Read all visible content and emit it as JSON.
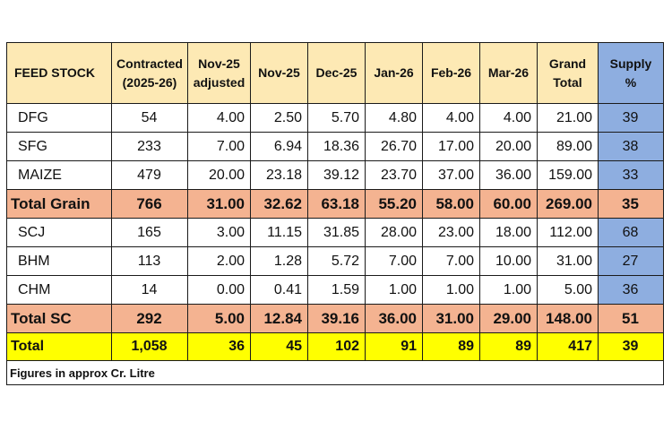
{
  "headers": {
    "feed_stock": "FEED STOCK",
    "contracted": "Contracted (2025-26)",
    "nov25_adj": "Nov-25 adjusted",
    "nov25": "Nov-25",
    "dec25": "Dec-25",
    "jan26": "Jan-26",
    "feb26": "Feb-26",
    "mar26": "Mar-26",
    "grand_total": "Grand Total",
    "supply": "Supply %"
  },
  "rows": [
    {
      "name": "DFG",
      "contracted": "54",
      "nov25_adj": "4.00",
      "nov25": "2.50",
      "dec25": "5.70",
      "jan26": "4.80",
      "feb26": "4.00",
      "mar26": "4.00",
      "grand_total": "21.00",
      "supply": "39"
    },
    {
      "name": "SFG",
      "contracted": "233",
      "nov25_adj": "7.00",
      "nov25": "6.94",
      "dec25": "18.36",
      "jan26": "26.70",
      "feb26": "17.00",
      "mar26": "20.00",
      "grand_total": "89.00",
      "supply": "38"
    },
    {
      "name": "MAIZE",
      "contracted": "479",
      "nov25_adj": "20.00",
      "nov25": "23.18",
      "dec25": "39.12",
      "jan26": "23.70",
      "feb26": "37.00",
      "mar26": "36.00",
      "grand_total": "159.00",
      "supply": "33"
    },
    {
      "name": "Total Grain",
      "contracted": "766",
      "nov25_adj": "31.00",
      "nov25": "32.62",
      "dec25": "63.18",
      "jan26": "55.20",
      "feb26": "58.00",
      "mar26": "60.00",
      "grand_total": "269.00",
      "supply": "35"
    },
    {
      "name": "SCJ",
      "contracted": "165",
      "nov25_adj": "3.00",
      "nov25": "11.15",
      "dec25": "31.85",
      "jan26": "28.00",
      "feb26": "23.00",
      "mar26": "18.00",
      "grand_total": "112.00",
      "supply": "68"
    },
    {
      "name": "BHM",
      "contracted": "113",
      "nov25_adj": "2.00",
      "nov25": "1.28",
      "dec25": "5.72",
      "jan26": "7.00",
      "feb26": "7.00",
      "mar26": "10.00",
      "grand_total": "31.00",
      "supply": "27"
    },
    {
      "name": "CHM",
      "contracted": "14",
      "nov25_adj": "0.00",
      "nov25": "0.41",
      "dec25": "1.59",
      "jan26": "1.00",
      "feb26": "1.00",
      "mar26": "1.00",
      "grand_total": "5.00",
      "supply": "36"
    },
    {
      "name": "Total SC",
      "contracted": "292",
      "nov25_adj": "5.00",
      "nov25": "12.84",
      "dec25": "39.16",
      "jan26": "36.00",
      "feb26": "31.00",
      "mar26": "29.00",
      "grand_total": "148.00",
      "supply": "51"
    },
    {
      "name": "Total",
      "contracted": "1,058",
      "nov25_adj": "36",
      "nov25": "45",
      "dec25": "102",
      "jan26": "91",
      "feb26": "89",
      "mar26": "89",
      "grand_total": "417",
      "supply": "39"
    }
  ],
  "footnote": "Figures in approx Cr. Litre",
  "colors": {
    "header_bg": "#fde9b4",
    "supply_bg": "#8eaee0",
    "total_bg": "#f4b391",
    "grand_total_bg": "#ffff00"
  }
}
